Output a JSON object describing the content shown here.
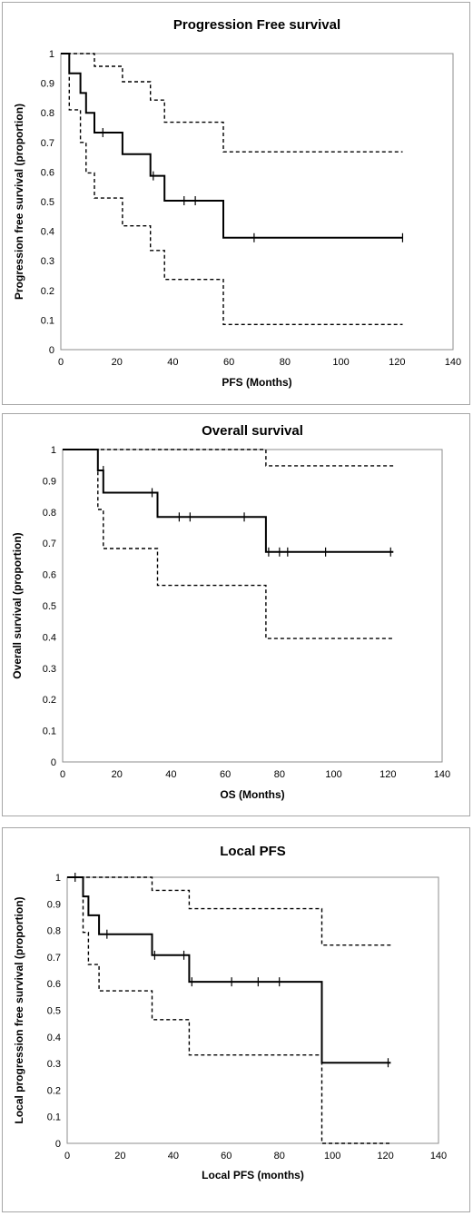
{
  "chart_data": [
    {
      "type": "line",
      "subtype": "kaplan-meier step",
      "title": "Progression Free survival",
      "xlabel": "PFS (Months)",
      "ylabel": "Progression free survival (proportion)",
      "xlim": [
        0,
        140
      ],
      "ylim": [
        0,
        1
      ],
      "xticks": [
        "0",
        "20",
        "40",
        "60",
        "80",
        "100",
        "120",
        "140"
      ],
      "yticks": [
        "0",
        "0.1",
        "0.2",
        "0.3",
        "0.4",
        "0.5",
        "0.6",
        "0.7",
        "0.8",
        "0.9",
        "1"
      ],
      "series": [
        {
          "style": "solid",
          "steps": [
            [
              0,
              1
            ],
            [
              3,
              0.933
            ],
            [
              7,
              0.867
            ],
            [
              9,
              0.8
            ],
            [
              12,
              0.733
            ],
            [
              22,
              0.66
            ],
            [
              32,
              0.587
            ],
            [
              37,
              0.503
            ],
            [
              58,
              0.378
            ],
            [
              122,
              0.378
            ]
          ],
          "censored": [
            [
              15,
              0.733
            ],
            [
              33,
              0.587
            ],
            [
              44,
              0.503
            ],
            [
              48,
              0.503
            ],
            [
              69,
              0.378
            ],
            [
              122,
              0.378
            ]
          ]
        },
        {
          "style": "dashed",
          "steps": [
            [
              0,
              1
            ],
            [
              12,
              0.957
            ],
            [
              22,
              0.905
            ],
            [
              32,
              0.843
            ],
            [
              37,
              0.768
            ],
            [
              58,
              0.668
            ],
            [
              122,
              0.668
            ]
          ],
          "censored": []
        },
        {
          "style": "dashed",
          "steps": [
            [
              0,
              1
            ],
            [
              3,
              0.81
            ],
            [
              7,
              0.7
            ],
            [
              9,
              0.597
            ],
            [
              12,
              0.512
            ],
            [
              22,
              0.418
            ],
            [
              32,
              0.335
            ],
            [
              37,
              0.237
            ],
            [
              58,
              0.085
            ],
            [
              122,
              0.085
            ]
          ],
          "censored": []
        }
      ]
    },
    {
      "type": "line",
      "subtype": "kaplan-meier step",
      "title": "Overall survival",
      "xlabel": "OS (Months)",
      "ylabel": "Overall survival (proportion)",
      "xlim": [
        0,
        140
      ],
      "ylim": [
        0,
        1
      ],
      "xticks": [
        "0",
        "20",
        "40",
        "60",
        "80",
        "100",
        "120",
        "140"
      ],
      "yticks": [
        "0",
        "0.1",
        "0.2",
        "0.3",
        "0.4",
        "0.5",
        "0.6",
        "0.7",
        "0.8",
        "0.9",
        "1"
      ],
      "series": [
        {
          "style": "solid",
          "steps": [
            [
              0,
              1
            ],
            [
              13,
              0.933
            ],
            [
              15,
              0.862
            ],
            [
              35,
              0.784
            ],
            [
              75,
              0.672
            ],
            [
              122,
              0.672
            ]
          ],
          "censored": [
            [
              15,
              0.933
            ],
            [
              33,
              0.862
            ],
            [
              43,
              0.784
            ],
            [
              47,
              0.784
            ],
            [
              67,
              0.784
            ],
            [
              76,
              0.672
            ],
            [
              80,
              0.672
            ],
            [
              83,
              0.672
            ],
            [
              97,
              0.672
            ],
            [
              121,
              0.672
            ]
          ]
        },
        {
          "style": "dashed",
          "steps": [
            [
              0,
              1
            ],
            [
              75,
              0.948
            ],
            [
              122,
              0.948
            ]
          ],
          "censored": []
        },
        {
          "style": "dashed",
          "steps": [
            [
              0,
              1
            ],
            [
              13,
              0.808
            ],
            [
              15,
              0.683
            ],
            [
              35,
              0.565
            ],
            [
              75,
              0.395
            ],
            [
              122,
              0.395
            ]
          ],
          "censored": []
        }
      ]
    },
    {
      "type": "line",
      "subtype": "kaplan-meier step",
      "title": "Local PFS",
      "xlabel": "Local PFS (months)",
      "ylabel": "Local progression free survival (proportion)",
      "xlim": [
        0,
        140
      ],
      "ylim": [
        0,
        1
      ],
      "xticks": [
        "0",
        "20",
        "40",
        "60",
        "80",
        "100",
        "120",
        "140"
      ],
      "yticks": [
        "0",
        "0.1",
        "0.2",
        "0.3",
        "0.4",
        "0.5",
        "0.6",
        "0.7",
        "0.8",
        "0.9",
        "1"
      ],
      "series": [
        {
          "style": "solid",
          "steps": [
            [
              0,
              1
            ],
            [
              6,
              0.928
            ],
            [
              8,
              0.857
            ],
            [
              12,
              0.786
            ],
            [
              32,
              0.707
            ],
            [
              46,
              0.607
            ],
            [
              96,
              0.303
            ],
            [
              122,
              0.303
            ]
          ],
          "censored": [
            [
              3,
              1
            ],
            [
              15,
              0.786
            ],
            [
              33,
              0.707
            ],
            [
              44,
              0.707
            ],
            [
              47,
              0.607
            ],
            [
              62,
              0.607
            ],
            [
              72,
              0.607
            ],
            [
              80,
              0.607
            ],
            [
              121,
              0.303
            ]
          ]
        },
        {
          "style": "dashed",
          "steps": [
            [
              0,
              1
            ],
            [
              32,
              0.951
            ],
            [
              46,
              0.882
            ],
            [
              96,
              0.745
            ],
            [
              122,
              0.745
            ]
          ],
          "censored": []
        },
        {
          "style": "dashed",
          "steps": [
            [
              0,
              1
            ],
            [
              6,
              0.793
            ],
            [
              8,
              0.672
            ],
            [
              12,
              0.573
            ],
            [
              32,
              0.465
            ],
            [
              46,
              0.332
            ],
            [
              96,
              0
            ],
            [
              122,
              0
            ]
          ],
          "censored": []
        }
      ]
    }
  ]
}
